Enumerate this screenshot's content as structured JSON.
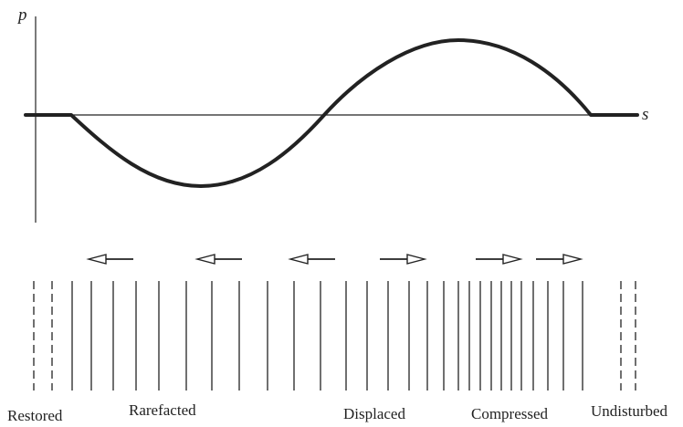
{
  "diagram": {
    "y_axis_label": "p",
    "x_axis_label": "s",
    "regions": [
      "Restored",
      "Rarefacted",
      "Displaced",
      "Compressed",
      "Undisturbed"
    ],
    "arrows": [
      "left",
      "left",
      "left",
      "right",
      "right",
      "right"
    ],
    "layer_lines": [
      {
        "style": "dashed"
      },
      {
        "style": "dashed"
      },
      {
        "style": "solid"
      },
      {
        "style": "solid"
      },
      {
        "style": "solid"
      },
      {
        "style": "solid"
      },
      {
        "style": "solid"
      },
      {
        "style": "solid"
      },
      {
        "style": "solid"
      },
      {
        "style": "solid"
      },
      {
        "style": "solid"
      },
      {
        "style": "solid"
      },
      {
        "style": "solid"
      },
      {
        "style": "solid"
      },
      {
        "style": "solid"
      },
      {
        "style": "solid"
      },
      {
        "style": "solid"
      },
      {
        "style": "solid"
      },
      {
        "style": "solid"
      },
      {
        "style": "solid"
      },
      {
        "style": "solid"
      },
      {
        "style": "solid"
      },
      {
        "style": "solid"
      },
      {
        "style": "solid"
      },
      {
        "style": "solid"
      },
      {
        "style": "solid"
      },
      {
        "style": "solid"
      },
      {
        "style": "solid"
      },
      {
        "style": "solid"
      },
      {
        "style": "solid"
      },
      {
        "style": "dashed"
      },
      {
        "style": "dashed"
      }
    ],
    "colors": {
      "ink": "#222222",
      "background": "#ffffff"
    }
  }
}
